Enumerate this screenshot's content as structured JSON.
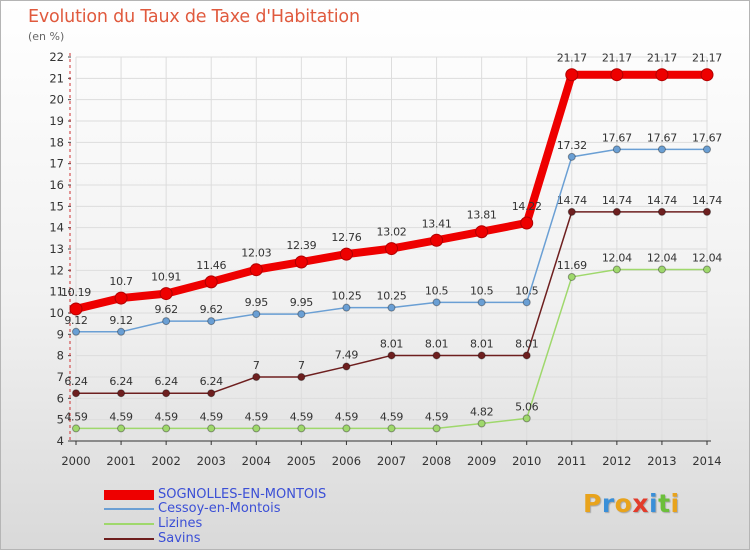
{
  "chart_data": {
    "type": "line",
    "title": "Evolution du Taux de Taxe d'Habitation",
    "ylabel": "(en %)",
    "xlabel": "",
    "ylim": [
      4,
      22
    ],
    "yticks": [
      "4",
      "5",
      "6",
      "7",
      "8",
      "9",
      "10",
      "11",
      "12",
      "13",
      "14",
      "15",
      "16",
      "17",
      "18",
      "19",
      "20",
      "21",
      "22"
    ],
    "categories": [
      "2000",
      "2001",
      "2002",
      "2003",
      "2004",
      "2005",
      "2006",
      "2007",
      "2008",
      "2009",
      "2010",
      "2011",
      "2012",
      "2013",
      "2014"
    ],
    "series": [
      {
        "name": "Savins",
        "color": "#6e1f1f",
        "values": [
          6.24,
          6.24,
          6.24,
          6.24,
          7,
          7,
          7.49,
          8.01,
          8.01,
          8.01,
          8.01,
          14.74,
          14.74,
          14.74,
          14.74
        ],
        "labels": [
          "6.24",
          "6.24",
          "6.24",
          "6.24",
          "7",
          "7",
          "7.49",
          "8.01",
          "8.01",
          "8.01",
          "8.01",
          "14.74",
          "14.74",
          "14.74",
          "14.74"
        ]
      },
      {
        "name": "Lizines",
        "color": "#9fd86c",
        "values": [
          4.59,
          4.59,
          4.59,
          4.59,
          4.59,
          4.59,
          4.59,
          4.59,
          4.59,
          4.82,
          5.06,
          11.69,
          12.04,
          12.04,
          12.04
        ],
        "labels": [
          "4.59",
          "4.59",
          "4.59",
          "4.59",
          "4.59",
          "4.59",
          "4.59",
          "4.59",
          "4.59",
          "4.82",
          "5.06",
          "11.69",
          "12.04",
          "12.04",
          "12.04"
        ]
      },
      {
        "name": "Cessoy-en-Montois",
        "color": "#6a9fd4",
        "values": [
          9.12,
          9.12,
          9.62,
          9.62,
          9.95,
          9.95,
          10.25,
          10.25,
          10.5,
          10.5,
          10.5,
          17.32,
          17.67,
          17.67,
          17.67
        ],
        "labels": [
          "9.12",
          "9.12",
          "9.62",
          "9.62",
          "9.95",
          "9.95",
          "10.25",
          "10.25",
          "10.5",
          "10.5",
          "10.5",
          "17.32",
          "17.67",
          "17.67",
          "17.67"
        ]
      },
      {
        "name": "SOGNOLLES-EN-MONTOIS",
        "color": "#ee0000",
        "values": [
          10.19,
          10.7,
          10.91,
          11.46,
          12.03,
          12.39,
          12.76,
          13.02,
          13.41,
          13.81,
          14.22,
          21.17,
          21.17,
          21.17,
          21.17
        ],
        "labels": [
          "10.19",
          "10.7",
          "10.91",
          "11.46",
          "12.03",
          "12.39",
          "12.76",
          "13.02",
          "13.41",
          "13.81",
          "14.22",
          "21.17",
          "21.17",
          "21.17",
          "21.17"
        ]
      }
    ],
    "legend": [
      {
        "name": "SOGNOLLES-EN-MONTOIS",
        "color": "#ee0000"
      },
      {
        "name": "Cessoy-en-Montois",
        "color": "#6a9fd4"
      },
      {
        "name": "Lizines",
        "color": "#9fd86c"
      },
      {
        "name": "Savins",
        "color": "#6e1f1f"
      }
    ],
    "legend_position": "bottom-left",
    "grid": true
  },
  "logo": {
    "letters": [
      "P",
      "r",
      "o",
      "x",
      "i",
      "t",
      "i"
    ],
    "colors": [
      "#e8a31c",
      "#3a8fd8",
      "#e8a31c",
      "#e23b2b",
      "#3a8fd8",
      "#6cbf3b",
      "#e8a31c"
    ]
  }
}
